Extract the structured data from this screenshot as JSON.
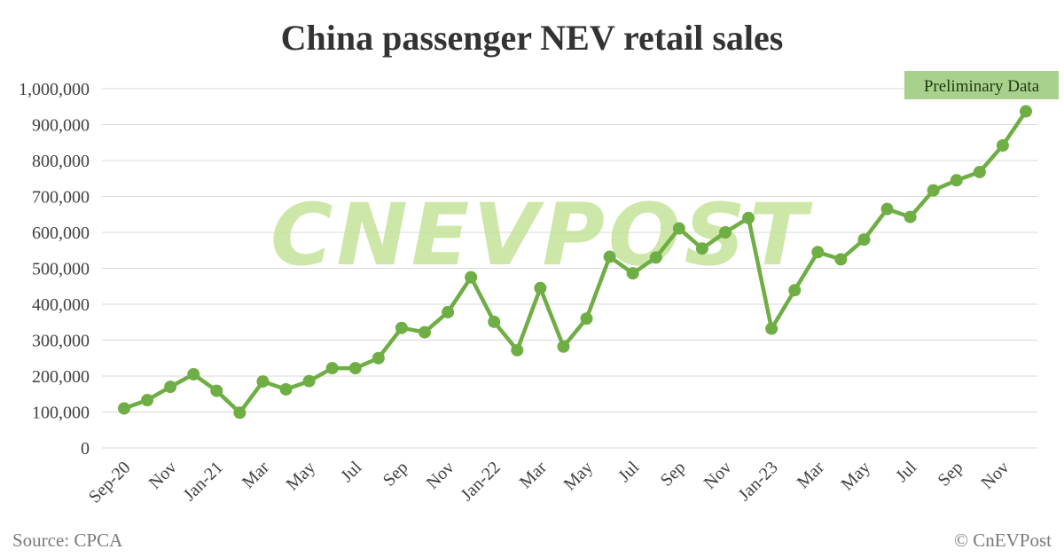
{
  "chart_data": {
    "type": "line",
    "title": "China passenger NEV retail sales",
    "x": [
      "Sep-20",
      "Oct-20",
      "Nov-20",
      "Dec-20",
      "Jan-21",
      "Feb-21",
      "Mar-21",
      "Apr-21",
      "May-21",
      "Jun-21",
      "Jul-21",
      "Aug-21",
      "Sep-21",
      "Oct-21",
      "Nov-21",
      "Dec-21",
      "Jan-22",
      "Feb-22",
      "Mar-22",
      "Apr-22",
      "May-22",
      "Jun-22",
      "Jul-22",
      "Aug-22",
      "Sep-22",
      "Oct-22",
      "Nov-22",
      "Dec-22",
      "Jan-23",
      "Feb-23",
      "Mar-23",
      "Apr-23",
      "May-23",
      "Jun-23",
      "Jul-23",
      "Aug-23",
      "Sep-23",
      "Oct-23",
      "Nov-23",
      "Dec-23"
    ],
    "x_tick_labels": [
      "Sep-20",
      "Nov",
      "Jan-21",
      "Mar",
      "May",
      "Jul",
      "Sep",
      "Nov",
      "Jan-22",
      "Mar",
      "May",
      "Jul",
      "Sep",
      "Nov",
      "Jan-23",
      "Mar",
      "May",
      "Jul",
      "Sep",
      "Nov"
    ],
    "series": [
      {
        "values": [
          110000,
          133000,
          170000,
          205000,
          159000,
          98000,
          185000,
          163000,
          186000,
          222000,
          222000,
          250000,
          334000,
          322000,
          378000,
          475000,
          351000,
          272000,
          445000,
          282000,
          360000,
          532000,
          486000,
          530000,
          611000,
          555000,
          600000,
          640000,
          332000,
          439000,
          545000,
          525000,
          580000,
          665000,
          643000,
          717000,
          745000,
          768000,
          842000,
          937000
        ]
      }
    ],
    "ylim": [
      0,
      1000000
    ],
    "yticks": [
      "0",
      "100,000",
      "200,000",
      "300,000",
      "400,000",
      "500,000",
      "600,000",
      "700,000",
      "800,000",
      "900,000",
      "1,000,000"
    ],
    "grid": true,
    "line_color": "#6fae44",
    "annotation": "Preliminary Data",
    "annotation_color": "#a9d18e"
  },
  "source": "Source: CPCA",
  "copyright": "© CnEVPost",
  "watermark": "CNEVPOST",
  "grid_color": "#d9d9d9"
}
